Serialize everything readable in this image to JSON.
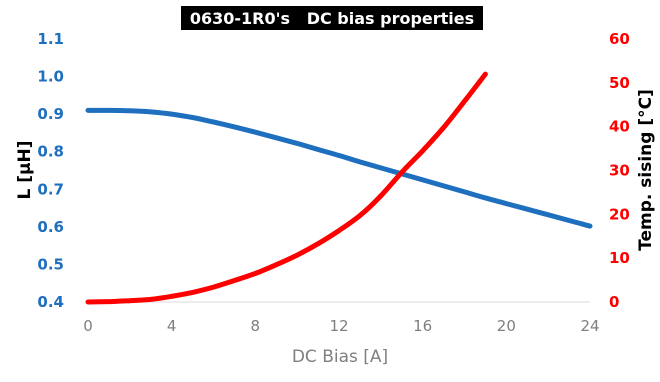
{
  "chart_data": {
    "type": "line",
    "title": "0630-1R0's   DC bias properties",
    "xlabel": "DC Bias [A]",
    "xlim": [
      0,
      24
    ],
    "x_ticks": [
      "0",
      "4",
      "8",
      "12",
      "16",
      "20",
      "24"
    ],
    "y_left": {
      "label": "L [μH]",
      "lim": [
        0.4,
        1.1
      ],
      "ticks": [
        "0.4",
        "0.5",
        "0.6",
        "0.7",
        "0.8",
        "0.9",
        "1.0",
        "1.1"
      ],
      "color": "#1f6fbf"
    },
    "y_right": {
      "label": "Temp. sising [°C]",
      "lim": [
        0,
        60
      ],
      "ticks": [
        "0",
        "10",
        "20",
        "30",
        "40",
        "50",
        "60"
      ],
      "color": "#ff0000"
    },
    "series": [
      {
        "axis": "left",
        "color": "#1f6fbf",
        "x": [
          0,
          1,
          2,
          3,
          4,
          5,
          6,
          7,
          8,
          9,
          10,
          11,
          12,
          13,
          14,
          15,
          16,
          17,
          18,
          19,
          20,
          21,
          22,
          23,
          24
        ],
        "y": [
          0.91,
          0.91,
          0.909,
          0.906,
          0.9,
          0.891,
          0.879,
          0.866,
          0.852,
          0.837,
          0.822,
          0.806,
          0.79,
          0.773,
          0.757,
          0.741,
          0.725,
          0.709,
          0.693,
          0.677,
          0.662,
          0.647,
          0.632,
          0.617,
          0.602
        ]
      },
      {
        "axis": "right",
        "color": "#ff0000",
        "x": [
          0,
          1,
          2,
          3,
          4,
          5,
          6,
          7,
          8,
          9,
          10,
          11,
          12,
          13,
          14,
          15,
          16,
          17,
          18,
          19
        ],
        "y": [
          0,
          0.1,
          0.3,
          0.6,
          1.3,
          2.2,
          3.4,
          4.9,
          6.5,
          8.5,
          10.7,
          13.3,
          16.3,
          19.7,
          24.2,
          29.6,
          34.5,
          39.8,
          45.8,
          52
        ]
      }
    ]
  }
}
